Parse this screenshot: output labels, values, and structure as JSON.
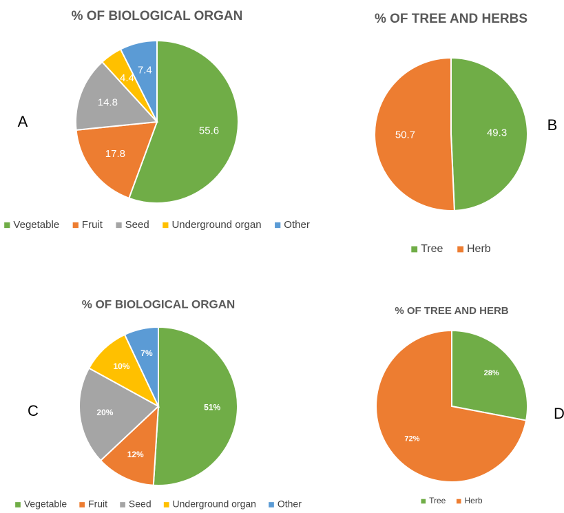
{
  "chart_data": [
    {
      "type": "pie",
      "label": "A",
      "title": "% OF BIOLOGICAL ORGAN",
      "categories": [
        "Vegetable",
        "Fruit",
        "Seed",
        "Underground organ",
        "Other"
      ],
      "colors": [
        "#70ad47",
        "#ed7d31",
        "#a5a5a5",
        "#ffc000",
        "#5b9bd5"
      ],
      "values": [
        55.6,
        17.8,
        14.8,
        4.4,
        7.4
      ]
    },
    {
      "type": "pie",
      "label": "B",
      "title": "% OF TREE AND HERBS",
      "categories": [
        "Tree",
        "Herb"
      ],
      "colors": [
        "#70ad47",
        "#ed7d31"
      ],
      "values": [
        49.3,
        50.7
      ]
    },
    {
      "type": "pie",
      "label": "C",
      "title": "% OF BIOLOGICAL ORGAN",
      "categories": [
        "Vegetable",
        "Fruit",
        "Seed",
        "Underground organ",
        "Other"
      ],
      "colors": [
        "#70ad47",
        "#ed7d31",
        "#a5a5a5",
        "#ffc000",
        "#5b9bd5"
      ],
      "values": [
        51,
        12,
        20,
        10,
        7
      ],
      "value_labels": [
        "51%",
        "12%",
        "20%",
        "10%",
        "7%"
      ]
    },
    {
      "type": "pie",
      "label": "D",
      "title": "% OF TREE AND HERB",
      "categories": [
        "Tree",
        "Herb"
      ],
      "colors": [
        "#70ad47",
        "#ed7d31"
      ],
      "values": [
        28,
        72
      ],
      "value_labels": [
        "28%",
        "72%"
      ]
    }
  ]
}
